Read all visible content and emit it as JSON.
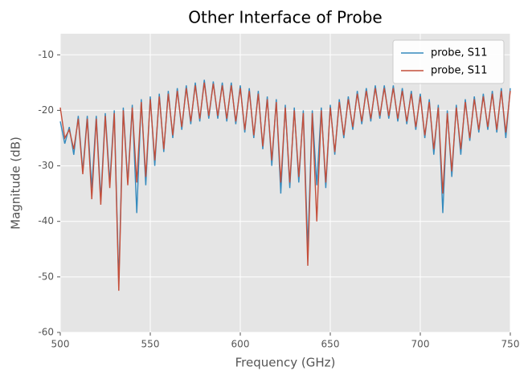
{
  "chart_data": {
    "type": "line",
    "title": "Other Interface of Probe",
    "x_label": "Frequency (GHz)",
    "y_label": "Magnitude (dB)",
    "xlim": [
      500,
      750
    ],
    "ylim": [
      -60,
      -6.2
    ],
    "xticks": [
      500,
      550,
      600,
      650,
      700,
      750
    ],
    "yticks": [
      -60,
      -50,
      -40,
      -30,
      -20,
      -10
    ],
    "grid": true,
    "legend": "upper right",
    "x": [
      500,
      502.5,
      505,
      507.5,
      510,
      512.5,
      515,
      517.5,
      520,
      522.5,
      525,
      527.5,
      530,
      532.5,
      535,
      537.5,
      540,
      542.5,
      545,
      547.5,
      550,
      552.5,
      555,
      557.5,
      560,
      562.5,
      565,
      567.5,
      570,
      572.5,
      575,
      577.5,
      580,
      582.5,
      585,
      587.5,
      590,
      592.5,
      595,
      597.5,
      600,
      602.5,
      605,
      607.5,
      610,
      612.5,
      615,
      617.5,
      620,
      622.5,
      625,
      627.5,
      630,
      632.5,
      635,
      637.5,
      640,
      642.5,
      645,
      647.5,
      650,
      652.5,
      655,
      657.5,
      660,
      662.5,
      665,
      667.5,
      670,
      672.5,
      675,
      677.5,
      680,
      682.5,
      685,
      687.5,
      690,
      692.5,
      695,
      697.5,
      700,
      702.5,
      705,
      707.5,
      710,
      712.5,
      715,
      717.5,
      720,
      722.5,
      725,
      727.5,
      730,
      732.5,
      735,
      737.5,
      740,
      742.5,
      745,
      747.5,
      750
    ],
    "series": [
      {
        "name": "probe, S11",
        "color": "#348abd",
        "values": [
          -22,
          -26,
          -23,
          -28,
          -21,
          -31,
          -21,
          -34,
          -21,
          -36,
          -20.5,
          -33,
          -20,
          -51,
          -19.5,
          -33,
          -19,
          -38.5,
          -18,
          -33.5,
          -17.5,
          -30,
          -17,
          -27.5,
          -16.5,
          -25,
          -16,
          -23.5,
          -15.5,
          -22.5,
          -15,
          -22,
          -14.5,
          -21.5,
          -14.8,
          -21.5,
          -15,
          -22,
          -15,
          -22.5,
          -15.5,
          -24,
          -16,
          -25,
          -16.5,
          -27,
          -17.5,
          -30,
          -18,
          -35,
          -19,
          -34,
          -19.5,
          -33,
          -20,
          -45,
          -20,
          -33.5,
          -19.5,
          -34,
          -19,
          -28,
          -18,
          -25,
          -17.5,
          -23.5,
          -16.5,
          -22.5,
          -16,
          -22,
          -15.5,
          -21.5,
          -15.5,
          -21.5,
          -15.5,
          -22,
          -16,
          -22.5,
          -16.5,
          -23.5,
          -17,
          -25,
          -18,
          -28,
          -19,
          -38.5,
          -20,
          -32,
          -19,
          -28,
          -18,
          -25.5,
          -17.5,
          -24,
          -17,
          -23.5,
          -16.5,
          -24,
          -16,
          -25,
          -16
        ]
      },
      {
        "name": "probe, S11",
        "color": "#c44e3a",
        "values": [
          -19.5,
          -25,
          -23.5,
          -27,
          -21.5,
          -31.5,
          -21.5,
          -36,
          -21.5,
          -37,
          -21,
          -34,
          -20.5,
          -52.5,
          -20,
          -33.5,
          -19.5,
          -33,
          -18.5,
          -32,
          -18,
          -29,
          -17.5,
          -27,
          -17,
          -24.5,
          -16.5,
          -23,
          -16,
          -22,
          -15.5,
          -21.5,
          -15,
          -21,
          -15.2,
          -21,
          -15.5,
          -21.5,
          -15.5,
          -22,
          -16,
          -23.5,
          -16.5,
          -24.5,
          -17,
          -26.5,
          -18,
          -29,
          -18.5,
          -33,
          -19.5,
          -33,
          -20,
          -32,
          -20.5,
          -48,
          -20.5,
          -40,
          -20,
          -33,
          -19.5,
          -27.5,
          -18.5,
          -24.5,
          -18,
          -23,
          -17,
          -22,
          -16.5,
          -21.5,
          -16,
          -21,
          -16,
          -21,
          -16,
          -21.5,
          -16.5,
          -22,
          -17,
          -23,
          -17.5,
          -24.5,
          -18.5,
          -27,
          -19.5,
          -35,
          -20.5,
          -31,
          -19.5,
          -27,
          -18.5,
          -25,
          -18,
          -23.5,
          -17.5,
          -23,
          -17,
          -23.5,
          -16.5,
          -24,
          -16.5
        ]
      }
    ]
  }
}
